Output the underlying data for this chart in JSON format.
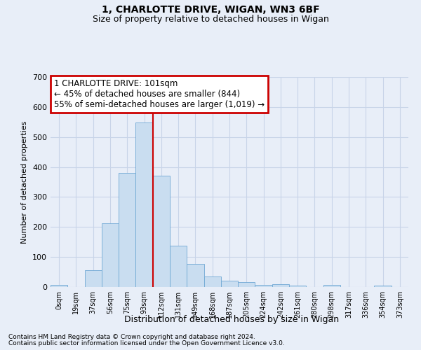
{
  "title1": "1, CHARLOTTE DRIVE, WIGAN, WN3 6BF",
  "title2": "Size of property relative to detached houses in Wigan",
  "xlabel": "Distribution of detached houses by size in Wigan",
  "ylabel": "Number of detached properties",
  "bar_labels": [
    "0sqm",
    "19sqm",
    "37sqm",
    "56sqm",
    "75sqm",
    "93sqm",
    "112sqm",
    "131sqm",
    "149sqm",
    "168sqm",
    "187sqm",
    "205sqm",
    "224sqm",
    "242sqm",
    "261sqm",
    "280sqm",
    "298sqm",
    "317sqm",
    "336sqm",
    "354sqm",
    "373sqm"
  ],
  "bar_values": [
    7,
    0,
    57,
    213,
    380,
    548,
    370,
    138,
    77,
    36,
    22,
    17,
    8,
    10,
    5,
    0,
    8,
    0,
    0,
    5,
    0
  ],
  "bar_color": "#c9ddf0",
  "bar_edge_color": "#6fa8d4",
  "vline_color": "#cc0000",
  "grid_color": "#c8d4e8",
  "background_color": "#e8eef8",
  "annotation_text": "1 CHARLOTTE DRIVE: 101sqm\n← 45% of detached houses are smaller (844)\n55% of semi-detached houses are larger (1,019) →",
  "annotation_box_facecolor": "#ffffff",
  "annotation_box_edgecolor": "#cc0000",
  "ylim": [
    0,
    700
  ],
  "yticks": [
    0,
    100,
    200,
    300,
    400,
    500,
    600,
    700
  ],
  "footer1": "Contains HM Land Registry data © Crown copyright and database right 2024.",
  "footer2": "Contains public sector information licensed under the Open Government Licence v3.0."
}
